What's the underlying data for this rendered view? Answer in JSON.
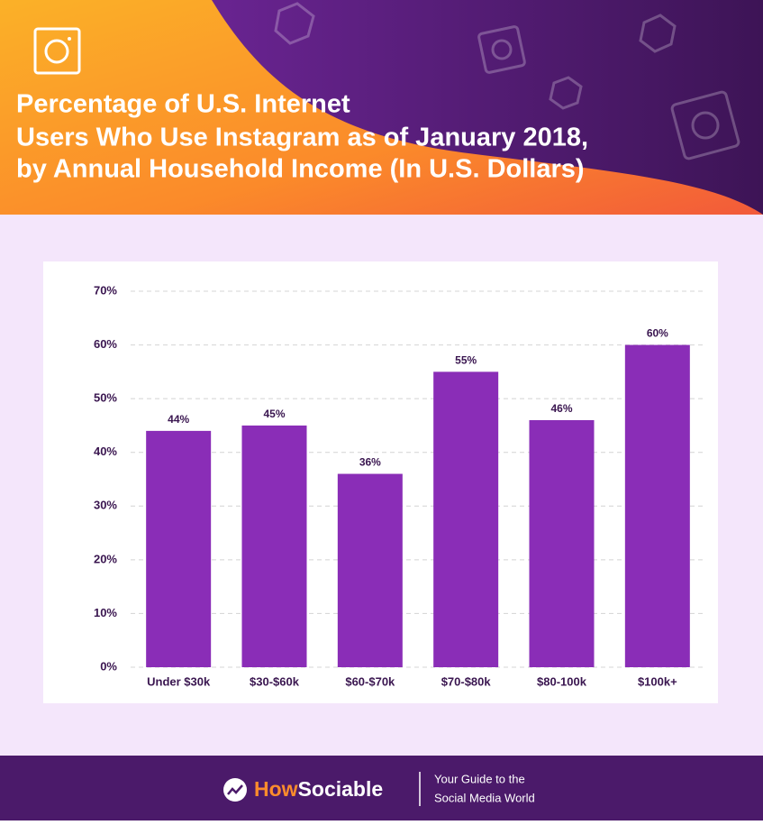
{
  "chart_data": {
    "type": "bar",
    "title": [
      "Percentage of U.S. Internet",
      "Users Who Use Instagram as of January 2018,",
      "by Annual Household Income (In U.S. Dollars)"
    ],
    "categories": [
      "Under $30k",
      "$30-$60k",
      "$60-$70k",
      "$70-$80k",
      "$80-100k",
      "$100k+"
    ],
    "values": [
      44,
      45,
      36,
      55,
      46,
      60
    ],
    "value_labels": [
      "44%",
      "45%",
      "36%",
      "55%",
      "46%",
      "60%"
    ],
    "color": "#8a2db7",
    "ylim": [
      0,
      70
    ],
    "yticks": [
      {
        "value": 0,
        "label": "0%"
      },
      {
        "value": 10,
        "label": "10%"
      },
      {
        "value": 20,
        "label": "20%"
      },
      {
        "value": 30,
        "label": "30%"
      },
      {
        "value": 40,
        "label": "40%"
      },
      {
        "value": 50,
        "label": "50%"
      },
      {
        "value": 60,
        "label": "60%"
      },
      {
        "value": 70,
        "label": "70%"
      }
    ],
    "grid": true
  },
  "footer": {
    "brand_prefix": "How",
    "brand_suffix": "Sociable",
    "tagline": [
      "Your Guide to the",
      "Social Media World"
    ]
  }
}
